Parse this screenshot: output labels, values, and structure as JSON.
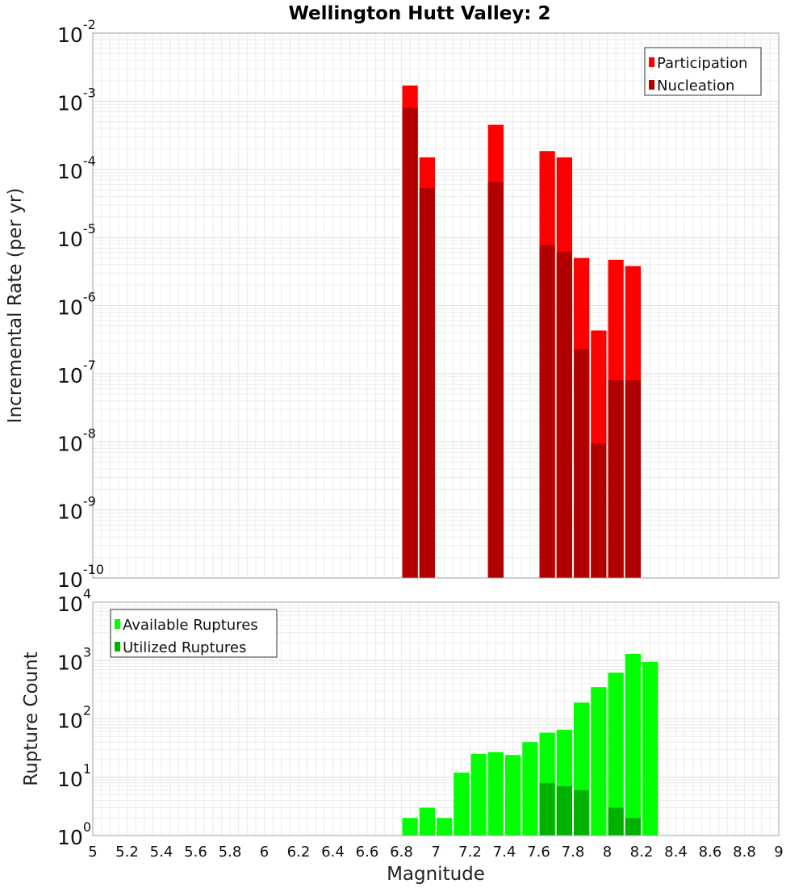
{
  "title": "Wellington Hutt Valley: 2",
  "chart_data": [
    {
      "type": "bar",
      "ylabel": "Incremental Rate (per yr)",
      "yscale": "log",
      "ylim_exp": [
        -10,
        -2
      ],
      "xlim": [
        5,
        9
      ],
      "grid": true,
      "legend_position": "top-right",
      "legend": [
        "Participation",
        "Nucleation"
      ],
      "colors": {
        "Participation": "#ff0000",
        "Nucleation": "#b20000"
      },
      "bin_width": 0.1,
      "series": [
        {
          "name": "Participation",
          "x": [
            6.85,
            6.95,
            7.35,
            7.65,
            7.75,
            7.85,
            7.95,
            8.05,
            8.15
          ],
          "values": [
            0.0017,
            0.00015,
            0.00045,
            0.000185,
            0.00015,
            5e-06,
            4.3e-07,
            4.7e-06,
            3.8e-06
          ]
        },
        {
          "name": "Nucleation",
          "x": [
            6.85,
            6.95,
            7.35,
            7.65,
            7.75,
            7.85,
            7.95,
            8.05,
            8.15
          ],
          "values": [
            0.0008,
            5.3e-05,
            6.5e-05,
            7.7e-06,
            6.2e-06,
            2.3e-07,
            9.5e-09,
            8e-08,
            8e-08
          ]
        }
      ]
    },
    {
      "type": "bar",
      "ylabel": "Rupture Count",
      "xlabel": "Magnitude",
      "yscale": "log",
      "ylim_exp": [
        0,
        4
      ],
      "xlim": [
        5,
        9
      ],
      "grid": true,
      "legend_position": "top-left",
      "legend": [
        "Available Ruptures",
        "Utilized Ruptures"
      ],
      "colors": {
        "Available Ruptures": "#00ff00",
        "Utilized Ruptures": "#00b200"
      },
      "bin_width": 0.1,
      "x_ticks": [
        "5",
        "5.2",
        "5.4",
        "5.6",
        "5.8",
        "6",
        "6.2",
        "6.4",
        "6.6",
        "6.8",
        "7",
        "7.2",
        "7.4",
        "7.6",
        "7.8",
        "8",
        "8.2",
        "8.4",
        "8.6",
        "8.8",
        "9"
      ],
      "series": [
        {
          "name": "Available Ruptures",
          "x": [
            6.55,
            6.75,
            6.85,
            6.95,
            7.05,
            7.15,
            7.25,
            7.35,
            7.45,
            7.55,
            7.65,
            7.75,
            7.85,
            7.95,
            8.05,
            8.15,
            8.25
          ],
          "values": [
            1,
            1,
            2,
            3,
            2,
            12,
            25,
            27,
            24,
            40,
            58,
            65,
            190,
            350,
            620,
            1300,
            950
          ]
        },
        {
          "name": "Utilized Ruptures",
          "x": [
            6.85,
            6.95,
            7.35,
            7.65,
            7.75,
            7.85,
            7.95,
            8.05,
            8.15
          ],
          "values": [
            1,
            1,
            1,
            8,
            7,
            6,
            1,
            3,
            2
          ]
        }
      ]
    }
  ]
}
